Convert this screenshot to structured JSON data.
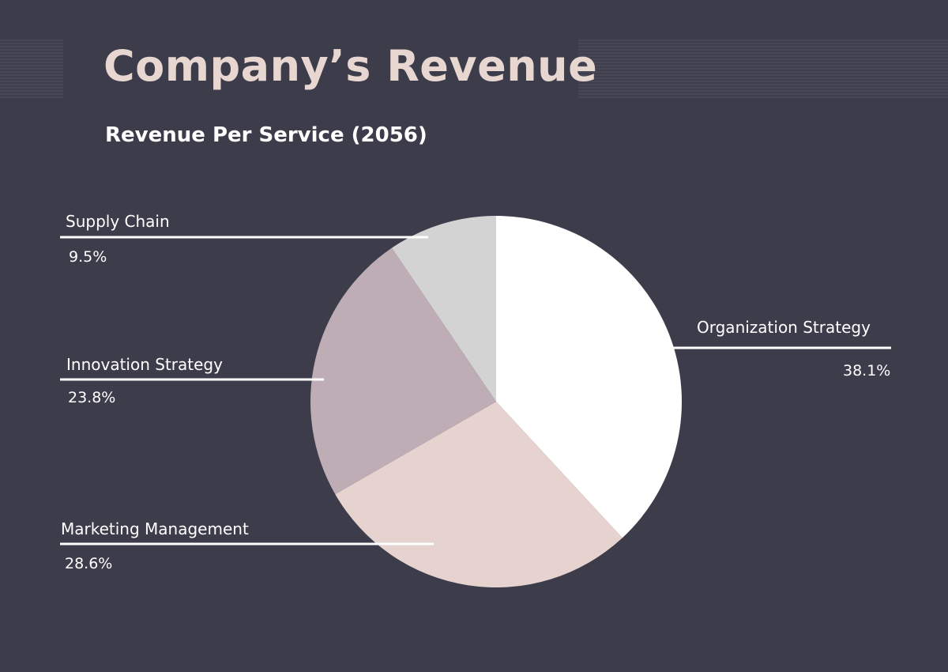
{
  "chart_data": {
    "type": "pie",
    "title": "Company’s Revenue",
    "subtitle": "Revenue Per Service (2056)",
    "start": "top",
    "direction": "clockwise",
    "slices": [
      {
        "label": "Organization Strategy",
        "value": 38.1,
        "display": "38.1%",
        "color": "#ffffff"
      },
      {
        "label": "Marketing Management",
        "value": 28.6,
        "display": "28.6%",
        "color": "#e6d3cf"
      },
      {
        "label": "Innovation Strategy",
        "value": 23.8,
        "display": "23.8%",
        "color": "#bfadb5"
      },
      {
        "label": "Supply Chain",
        "value": 9.5,
        "display": "9.5%",
        "color": "#d3d3d3"
      }
    ]
  },
  "colors": {
    "background": "#3d3c4a",
    "title": "#e8d6d0",
    "text": "#ffffff"
  }
}
